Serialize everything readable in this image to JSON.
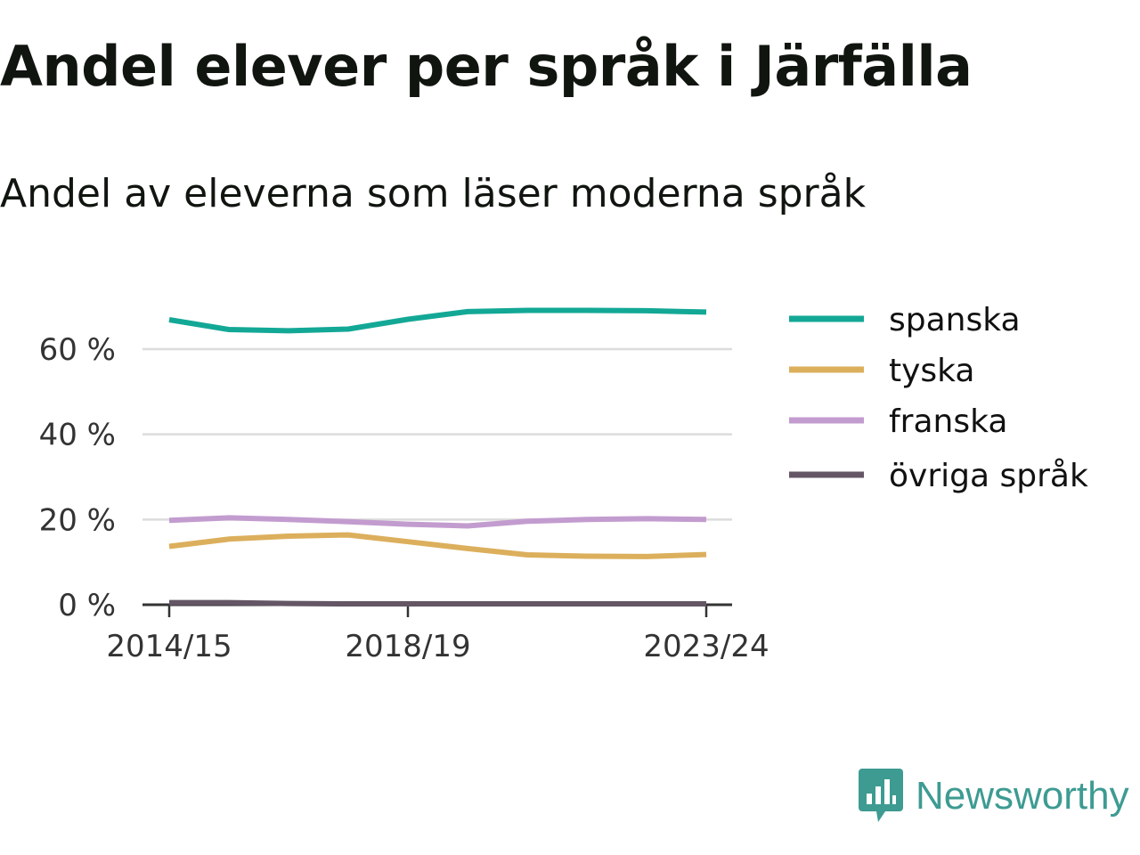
{
  "header": {
    "title": "Andel elever per språk i Järfälla",
    "subtitle": "Andel av eleverna som läser moderna språk"
  },
  "brand": {
    "name": "Newsworthy",
    "icon": "newsworthy-logo-icon",
    "color": "#3d9b92"
  },
  "chart_data": {
    "type": "line",
    "x": [
      "2014/15",
      "2015/16",
      "2016/17",
      "2017/18",
      "2018/19",
      "2019/20",
      "2020/21",
      "2021/22",
      "2022/23",
      "2023/24"
    ],
    "x_tick_labels": [
      "2014/15",
      "2018/19",
      "2023/24"
    ],
    "ylim": [
      0,
      70
    ],
    "y_ticks": [
      0,
      20,
      40,
      60
    ],
    "y_tick_labels": [
      "0 %",
      "20 %",
      "40 %",
      "60 %"
    ],
    "grid": true,
    "legend_position": "right",
    "series": [
      {
        "name": "spanska",
        "color": "#13a896",
        "values": [
          66.9,
          64.6,
          64.3,
          64.7,
          67.0,
          68.8,
          69.1,
          69.1,
          69.0,
          68.7
        ]
      },
      {
        "name": "tyska",
        "color": "#dcaf5d",
        "values": [
          13.7,
          15.4,
          16.1,
          16.4,
          14.8,
          13.2,
          11.7,
          11.4,
          11.3,
          11.8
        ]
      },
      {
        "name": "franska",
        "color": "#c39ccf",
        "values": [
          19.8,
          20.4,
          20.0,
          19.5,
          18.9,
          18.5,
          19.6,
          20.0,
          20.2,
          20.0
        ]
      },
      {
        "name": "övriga språk",
        "color": "#645665",
        "values": [
          0.5,
          0.5,
          0.3,
          0.2,
          0.2,
          0.2,
          0.2,
          0.2,
          0.2,
          0.2
        ]
      }
    ]
  }
}
